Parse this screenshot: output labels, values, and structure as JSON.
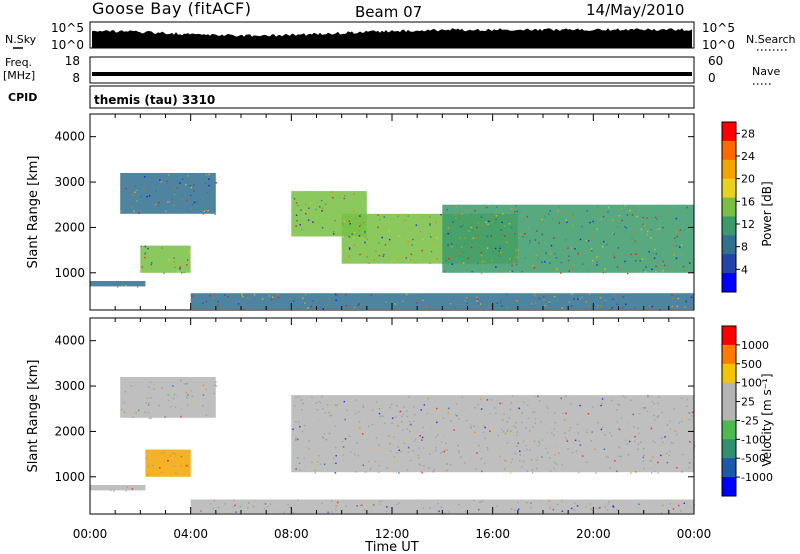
{
  "header": {
    "site": "Goose Bay (fitACF)",
    "beam": "Beam 07",
    "date": "14/May/2010"
  },
  "strips": {
    "nsky_label": "N.Sky",
    "nsky_ticks": [
      "10^5",
      "10^0"
    ],
    "nsearch_label": "N.Search",
    "nsearch_ticks": [
      "10^5",
      "10^0"
    ],
    "freq_label_1": "Freq.",
    "freq_label_2": "[MHz]",
    "freq_ticks": [
      "18",
      "8"
    ],
    "nave_label": "Nave",
    "nave_ticks": [
      "60",
      "0"
    ],
    "cpid_label": "CPID",
    "cpid_value": "themis (tau) 3310"
  },
  "colors": {
    "power_scale": [
      "#0000ff",
      "#2244aa",
      "#2f6f8f",
      "#3c9a6a",
      "#77c043",
      "#e8d21f",
      "#f4a400",
      "#ff6a00",
      "#ff0000"
    ],
    "velocity_scale": [
      "#0000ff",
      "#1a5aa8",
      "#2f8f6f",
      "#4fb84f",
      "#b4b4b4",
      "#b4b4b4",
      "#f4c400",
      "#ff7a00",
      "#ff0000"
    ],
    "ground_scatter": "#b4b4b4"
  },
  "chart_data": [
    {
      "type": "heatmap",
      "name": "power",
      "ylabel": "Slant Range [km]",
      "xlabel": "",
      "ylim": [
        180,
        4500
      ],
      "xlim": [
        "00:00",
        "24:00"
      ],
      "x_ticks": [
        "00:00",
        "04:00",
        "08:00",
        "12:00",
        "16:00",
        "20:00",
        "00:00"
      ],
      "y_ticks": [
        1000,
        2000,
        3000,
        4000
      ],
      "colorbar": {
        "label": "Power [dB]",
        "ticks": [
          "4",
          "8",
          "12",
          "16",
          "20",
          "24",
          "28"
        ],
        "range": [
          0,
          30
        ]
      },
      "regions": [
        {
          "t0": 1.2,
          "t1": 5.0,
          "r0": 2300,
          "r1": 3200,
          "level": 6
        },
        {
          "t0": 2.0,
          "t1": 4.0,
          "r0": 1000,
          "r1": 1600,
          "level": 14
        },
        {
          "t0": 0.0,
          "t1": 2.2,
          "r0": 700,
          "r1": 820,
          "level": 6
        },
        {
          "t0": 4.0,
          "t1": 24.0,
          "r0": 200,
          "r1": 550,
          "level": 6
        },
        {
          "t0": 8.0,
          "t1": 11.0,
          "r0": 1800,
          "r1": 2800,
          "level": 14
        },
        {
          "t0": 10.0,
          "t1": 17.0,
          "r0": 1200,
          "r1": 2300,
          "level": 14
        },
        {
          "t0": 14.0,
          "t1": 24.0,
          "r0": 1000,
          "r1": 2500,
          "level": 12
        }
      ]
    },
    {
      "type": "heatmap",
      "name": "velocity",
      "ylabel": "Slant Range [km]",
      "xlabel": "Time UT",
      "ylim": [
        180,
        4500
      ],
      "xlim": [
        "00:00",
        "24:00"
      ],
      "x_ticks": [
        "00:00",
        "04:00",
        "08:00",
        "12:00",
        "16:00",
        "20:00",
        "00:00"
      ],
      "y_ticks": [
        1000,
        2000,
        3000,
        4000
      ],
      "colorbar": {
        "label": "Velocity [m s⁻¹]",
        "ticks": [
          "1000",
          "500",
          "100",
          "25",
          "-25",
          "-100",
          "-500",
          "-1000"
        ],
        "range": [
          -1000,
          1000
        ]
      },
      "regions": [
        {
          "t0": 1.2,
          "t1": 5.0,
          "r0": 2300,
          "r1": 3200,
          "kind": "ground"
        },
        {
          "t0": 2.2,
          "t1": 4.0,
          "r0": 1000,
          "r1": 1600,
          "kind": "orange"
        },
        {
          "t0": 0.0,
          "t1": 2.2,
          "r0": 700,
          "r1": 820,
          "kind": "ground"
        },
        {
          "t0": 4.0,
          "t1": 24.0,
          "r0": 200,
          "r1": 500,
          "kind": "ground"
        },
        {
          "t0": 8.0,
          "t1": 24.0,
          "r0": 1100,
          "r1": 2800,
          "kind": "ground"
        }
      ]
    }
  ]
}
